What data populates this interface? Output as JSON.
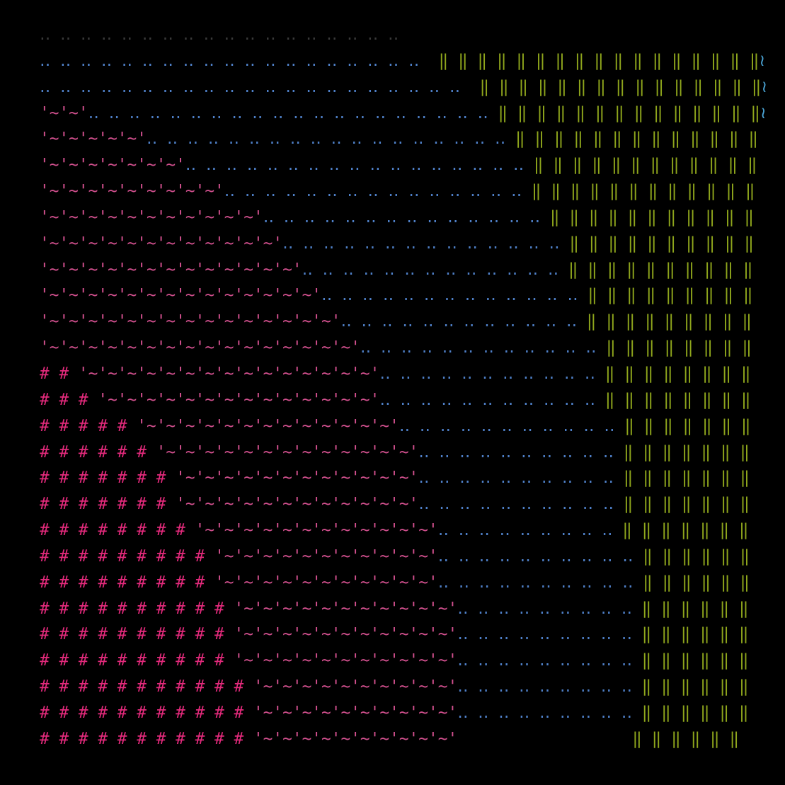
{
  "rows": [
    {
      "faint": "‥ ‥ ‥ ‥ ‥ ‥ ‥ ‥ ‥ ‥ ‥ ‥ ‥ ‥ ‥ ‥ ‥ ‥"
    },
    {
      "dots": "‥ ‥ ‥ ‥ ‥ ‥ ‥ ‥ ‥ ‥ ‥ ‥ ‥ ‥ ‥ ‥ ‥ ‥ ‥  ",
      "bars": "‖ ‖ ‖ ‖ ‖ ‖ ‖ ‖ ‖ ‖ ‖ ‖ ‖ ‖ ‖ ‖ ‖",
      "tail": "≀"
    },
    {
      "dots": "‥ ‥ ‥ ‥ ‥ ‥ ‥ ‥ ‥ ‥ ‥ ‥ ‥ ‥ ‥ ‥ ‥ ‥ ‥ ‥ ‥  ",
      "bars": "‖ ‖ ‖ ‖ ‖ ‖ ‖ ‖ ‖ ‖ ‖ ‖ ‖ ‖ ‖",
      "tail": "≀"
    },
    {
      "wave": "'~'~'",
      "dots": "‥ ‥ ‥ ‥ ‥ ‥ ‥ ‥ ‥ ‥ ‥ ‥ ‥ ‥ ‥ ‥ ‥ ‥ ‥ ‥ ",
      "bars": "‖ ‖ ‖ ‖ ‖ ‖ ‖ ‖ ‖ ‖ ‖ ‖ ‖ ‖",
      "tail": "≀"
    },
    {
      "wave": "'~'~'~'~'~'",
      "dots": "‥ ‥ ‥ ‥ ‥ ‥ ‥ ‥ ‥ ‥ ‥ ‥ ‥ ‥ ‥ ‥ ‥ ‥ ",
      "bars": "‖ ‖ ‖ ‖ ‖ ‖ ‖ ‖ ‖ ‖ ‖ ‖ ‖"
    },
    {
      "wave": "'~'~'~'~'~'~'~'",
      "dots": "‥ ‥ ‥ ‥ ‥ ‥ ‥ ‥ ‥ ‥ ‥ ‥ ‥ ‥ ‥ ‥ ‥ ",
      "bars": "‖ ‖ ‖ ‖ ‖ ‖ ‖ ‖ ‖ ‖ ‖ ‖"
    },
    {
      "wave": "'~'~'~'~'~'~'~'~'~'",
      "dots": "‥ ‥ ‥ ‥ ‥ ‥ ‥ ‥ ‥ ‥ ‥ ‥ ‥ ‥ ‥ ",
      "bars": "‖ ‖ ‖ ‖ ‖ ‖ ‖ ‖ ‖ ‖ ‖ ‖"
    },
    {
      "wave": "'~'~'~'~'~'~'~'~'~'~'~'",
      "dots": "‥ ‥ ‥ ‥ ‥ ‥ ‥ ‥ ‥ ‥ ‥ ‥ ‥ ‥ ",
      "bars": "‖ ‖ ‖ ‖ ‖ ‖ ‖ ‖ ‖ ‖ ‖"
    },
    {
      "wave": "'~'~'~'~'~'~'~'~'~'~'~'~'",
      "dots": "‥ ‥ ‥ ‥ ‥ ‥ ‥ ‥ ‥ ‥ ‥ ‥ ‥ ‥ ",
      "bars": "‖ ‖ ‖ ‖ ‖ ‖ ‖ ‖ ‖ ‖"
    },
    {
      "wave": "'~'~'~'~'~'~'~'~'~'~'~'~'~'",
      "dots": "‥ ‥ ‥ ‥ ‥ ‥ ‥ ‥ ‥ ‥ ‥ ‥ ‥ ",
      "bars": "‖ ‖ ‖ ‖ ‖ ‖ ‖ ‖ ‖ ‖"
    },
    {
      "wave": "'~'~'~'~'~'~'~'~'~'~'~'~'~'~'",
      "dots": "‥ ‥ ‥ ‥ ‥ ‥ ‥ ‥ ‥ ‥ ‥ ‥ ‥ ",
      "bars": "‖ ‖ ‖ ‖ ‖ ‖ ‖ ‖ ‖"
    },
    {
      "wave": "'~'~'~'~'~'~'~'~'~'~'~'~'~'~'~'",
      "dots": "‥ ‥ ‥ ‥ ‥ ‥ ‥ ‥ ‥ ‥ ‥ ‥ ",
      "bars": "‖ ‖ ‖ ‖ ‖ ‖ ‖ ‖ ‖"
    },
    {
      "wave": "'~'~'~'~'~'~'~'~'~'~'~'~'~'~'~'~'",
      "dots": "‥ ‥ ‥ ‥ ‥ ‥ ‥ ‥ ‥ ‥ ‥ ‥ ",
      "bars": "‖ ‖ ‖ ‖ ‖ ‖ ‖ ‖"
    },
    {
      "hash": "# # ",
      "wave": "'~'~'~'~'~'~'~'~'~'~'~'~'~'~'~'",
      "dots": "‥ ‥ ‥ ‥ ‥ ‥ ‥ ‥ ‥ ‥ ‥ ",
      "bars": "‖ ‖ ‖ ‖ ‖ ‖ ‖ ‖"
    },
    {
      "hash": "# # # ",
      "wave": "'~'~'~'~'~'~'~'~'~'~'~'~'~'~'",
      "dots": "‥ ‥ ‥ ‥ ‥ ‥ ‥ ‥ ‥ ‥ ‥ ",
      "bars": "‖ ‖ ‖ ‖ ‖ ‖ ‖ ‖"
    },
    {
      "hash": "# # # # # ",
      "wave": "'~'~'~'~'~'~'~'~'~'~'~'~'~'",
      "dots": "‥ ‥ ‥ ‥ ‥ ‥ ‥ ‥ ‥ ‥ ‥ ",
      "bars": "‖ ‖ ‖ ‖ ‖ ‖ ‖"
    },
    {
      "hash": "# # # # # # ",
      "wave": "'~'~'~'~'~'~'~'~'~'~'~'~'~'",
      "dots": "‥ ‥ ‥ ‥ ‥ ‥ ‥ ‥ ‥ ‥ ",
      "bars": "‖ ‖ ‖ ‖ ‖ ‖ ‖"
    },
    {
      "hash": "# # # # # # # ",
      "wave": "'~'~'~'~'~'~'~'~'~'~'~'~'",
      "dots": "‥ ‥ ‥ ‥ ‥ ‥ ‥ ‥ ‥ ‥ ",
      "bars": "‖ ‖ ‖ ‖ ‖ ‖ ‖"
    },
    {
      "hash": "# # # # # # # ",
      "wave": "'~'~'~'~'~'~'~'~'~'~'~'~'",
      "dots": "‥ ‥ ‥ ‥ ‥ ‥ ‥ ‥ ‥ ‥ ",
      "bars": "‖ ‖ ‖ ‖ ‖ ‖ ‖"
    },
    {
      "hash": "# # # # # # # # ",
      "wave": "'~'~'~'~'~'~'~'~'~'~'~'~'",
      "dots": "‥ ‥ ‥ ‥ ‥ ‥ ‥ ‥ ‥ ",
      "bars": "‖ ‖ ‖ ‖ ‖ ‖ ‖"
    },
    {
      "hash": "# # # # # # # # # ",
      "wave": "'~'~'~'~'~'~'~'~'~'~'~'",
      "dots": "‥ ‥ ‥ ‥ ‥ ‥ ‥ ‥ ‥ ‥ ",
      "bars": "‖ ‖ ‖ ‖ ‖ ‖"
    },
    {
      "hash": "# # # # # # # # # ",
      "wave": "'~'~'~'~'~'~'~'~'~'~'~'",
      "dots": "‥ ‥ ‥ ‥ ‥ ‥ ‥ ‥ ‥ ‥ ",
      "bars": "‖ ‖ ‖ ‖ ‖ ‖"
    },
    {
      "hash": "# # # # # # # # # # ",
      "wave": "'~'~'~'~'~'~'~'~'~'~'~'",
      "dots": "‥ ‥ ‥ ‥ ‥ ‥ ‥ ‥ ‥ ",
      "bars": "‖ ‖ ‖ ‖ ‖ ‖"
    },
    {
      "hash": "# # # # # # # # # # ",
      "wave": "'~'~'~'~'~'~'~'~'~'~'~'",
      "dots": "‥ ‥ ‥ ‥ ‥ ‥ ‥ ‥ ‥ ",
      "bars": "‖ ‖ ‖ ‖ ‖ ‖"
    },
    {
      "hash": "# # # # # # # # # # ",
      "wave": "'~'~'~'~'~'~'~'~'~'~'~'",
      "dots": "‥ ‥ ‥ ‥ ‥ ‥ ‥ ‥ ‥ ",
      "bars": "‖ ‖ ‖ ‖ ‖ ‖"
    },
    {
      "hash": "# # # # # # # # # # # ",
      "wave": "'~'~'~'~'~'~'~'~'~'~'",
      "dots": "‥ ‥ ‥ ‥ ‥ ‥ ‥ ‥ ‥ ",
      "bars": "‖ ‖ ‖ ‖ ‖ ‖"
    },
    {
      "hash": "# # # # # # # # # # # ",
      "wave": "'~'~'~'~'~'~'~'~'~'~'",
      "dots": "‥ ‥ ‥ ‥ ‥ ‥ ‥ ‥ ‥ ",
      "bars": "‖ ‖ ‖ ‖ ‖ ‖"
    },
    {
      "hash": "# # # # # # # # # # # ",
      "wave": "'~'~'~'~'~'~'~'~'~'~'",
      "bars": "                  ‖ ‖ ‖ ‖ ‖ ‖"
    }
  ]
}
